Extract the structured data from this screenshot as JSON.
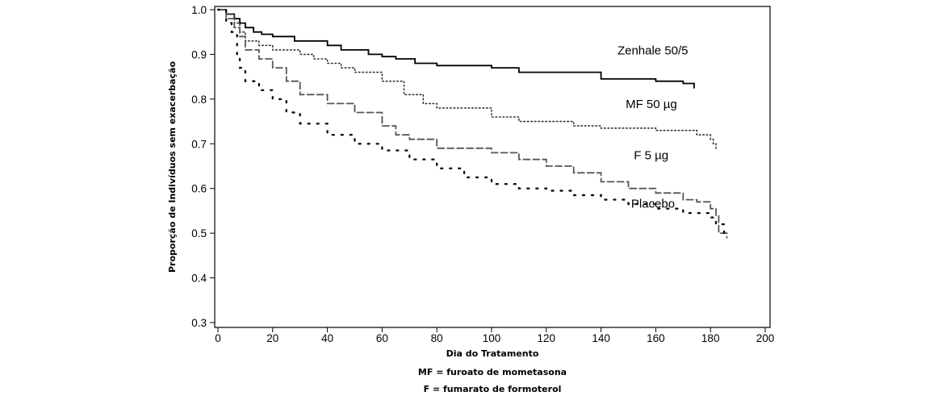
{
  "chart_data": {
    "type": "line",
    "xlabel": "Dia do Tratamento",
    "ylabel": "Proporção de Indivíduos sem exacerbação",
    "xlim": [
      0,
      200
    ],
    "ylim": [
      0.3,
      1.0
    ],
    "x_ticks": [
      0,
      20,
      40,
      60,
      80,
      100,
      120,
      140,
      160,
      180,
      200
    ],
    "y_ticks": [
      0.3,
      0.4,
      0.5,
      0.6,
      0.7,
      0.8,
      0.9,
      1.0
    ],
    "x_tick_labels": [
      "0",
      "20",
      "40",
      "60",
      "80",
      "100",
      "120",
      "140",
      "160",
      "180",
      "200"
    ],
    "y_tick_labels": [
      "0.3",
      "0.4",
      "0.5",
      "0.6",
      "0.7",
      "0.8",
      "0.9",
      "1.0"
    ],
    "grid": false,
    "series": [
      {
        "name": "Zenhale 50/5",
        "style": "solid",
        "color": "#000000",
        "x": [
          0,
          3,
          6,
          8,
          10,
          13,
          16,
          20,
          28,
          40,
          45,
          55,
          60,
          65,
          72,
          80,
          100,
          110,
          140,
          160,
          170,
          174
        ],
        "y": [
          1.0,
          0.99,
          0.98,
          0.97,
          0.96,
          0.95,
          0.945,
          0.94,
          0.93,
          0.92,
          0.91,
          0.9,
          0.895,
          0.89,
          0.88,
          0.875,
          0.87,
          0.86,
          0.845,
          0.84,
          0.835,
          0.825
        ]
      },
      {
        "name": "MF 50 µg",
        "style": "dotted",
        "color": "#333333",
        "x": [
          0,
          3,
          6,
          8,
          10,
          15,
          20,
          30,
          35,
          40,
          45,
          50,
          60,
          68,
          75,
          80,
          100,
          110,
          130,
          140,
          160,
          175,
          180,
          181,
          182
        ],
        "y": [
          1.0,
          0.99,
          0.97,
          0.95,
          0.93,
          0.92,
          0.91,
          0.9,
          0.89,
          0.88,
          0.87,
          0.86,
          0.84,
          0.81,
          0.79,
          0.78,
          0.76,
          0.75,
          0.74,
          0.735,
          0.73,
          0.72,
          0.71,
          0.7,
          0.685
        ]
      },
      {
        "name": "F 5 µg",
        "style": "dashed",
        "color": "#555555",
        "x": [
          0,
          3,
          6,
          8,
          10,
          15,
          20,
          25,
          30,
          40,
          50,
          60,
          65,
          70,
          80,
          100,
          110,
          120,
          130,
          140,
          150,
          160,
          170,
          175,
          180,
          182,
          183,
          186
        ],
        "y": [
          1.0,
          0.98,
          0.96,
          0.94,
          0.91,
          0.89,
          0.87,
          0.84,
          0.81,
          0.79,
          0.77,
          0.74,
          0.72,
          0.71,
          0.69,
          0.68,
          0.665,
          0.65,
          0.635,
          0.615,
          0.6,
          0.59,
          0.575,
          0.57,
          0.555,
          0.54,
          0.5,
          0.49
        ]
      },
      {
        "name": "Placebo",
        "style": "sparse-dotted",
        "color": "#111111",
        "x": [
          0,
          3,
          5,
          7,
          8,
          10,
          15,
          20,
          25,
          30,
          40,
          50,
          60,
          70,
          80,
          90,
          100,
          110,
          120,
          130,
          140,
          150,
          160,
          170,
          180,
          182,
          185
        ],
        "y": [
          1.0,
          0.97,
          0.95,
          0.9,
          0.87,
          0.84,
          0.82,
          0.8,
          0.77,
          0.745,
          0.72,
          0.7,
          0.685,
          0.665,
          0.645,
          0.625,
          0.61,
          0.6,
          0.595,
          0.585,
          0.575,
          0.565,
          0.555,
          0.545,
          0.535,
          0.52,
          0.49
        ]
      }
    ],
    "annotations": [
      {
        "text": "Zenhale 50/5",
        "x": 146,
        "y": 0.9
      },
      {
        "text": "MF 50 µg",
        "x": 149,
        "y": 0.78
      },
      {
        "text": "F 5 µg",
        "x": 152,
        "y": 0.665
      },
      {
        "text": "Placebo",
        "x": 151,
        "y": 0.557
      }
    ]
  },
  "footnotes": [
    "MF = furoato de mometasona",
    "F = fumarato de formoterol"
  ]
}
